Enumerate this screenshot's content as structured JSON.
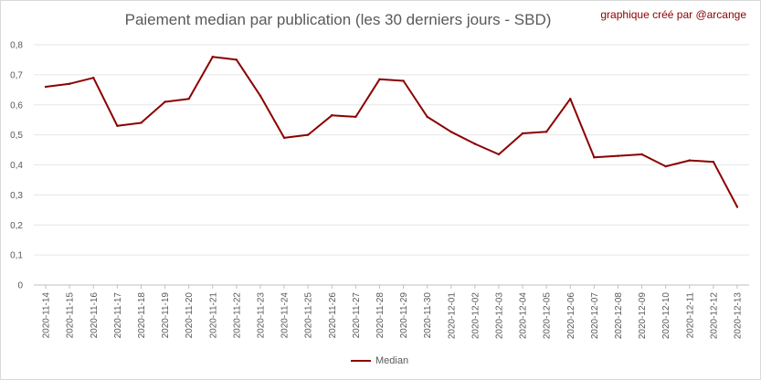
{
  "chart_data": {
    "type": "line",
    "title": "Paiement median par publication (les 30 derniers jours - SBD)",
    "credit": "graphique créé par @arcange",
    "ylim": [
      0,
      0.8
    ],
    "y_ticks": [
      "0",
      "0,1",
      "0,2",
      "0,3",
      "0,4",
      "0,5",
      "0,6",
      "0,7",
      "0,8"
    ],
    "grid": "horizontal",
    "legend_position": "bottom",
    "line_color": "#8b0000",
    "categories": [
      "2020-11-14",
      "2020-11-15",
      "2020-11-16",
      "2020-11-17",
      "2020-11-18",
      "2020-11-19",
      "2020-11-20",
      "2020-11-21",
      "2020-11-22",
      "2020-11-23",
      "2020-11-24",
      "2020-11-25",
      "2020-11-26",
      "2020-11-27",
      "2020-11-28",
      "2020-11-29",
      "2020-11-30",
      "2020-12-01",
      "2020-12-02",
      "2020-12-03",
      "2020-12-04",
      "2020-12-05",
      "2020-12-06",
      "2020-12-07",
      "2020-12-08",
      "2020-12-09",
      "2020-12-10",
      "2020-12-11",
      "2020-12-12",
      "2020-12-13"
    ],
    "series": [
      {
        "name": "Median",
        "values": [
          0.66,
          0.67,
          0.69,
          0.53,
          0.54,
          0.61,
          0.62,
          0.76,
          0.75,
          0.63,
          0.49,
          0.5,
          0.565,
          0.56,
          0.685,
          0.68,
          0.56,
          0.51,
          0.47,
          0.435,
          0.505,
          0.51,
          0.62,
          0.425,
          0.43,
          0.435,
          0.395,
          0.415,
          0.41,
          0.26
        ]
      }
    ]
  }
}
